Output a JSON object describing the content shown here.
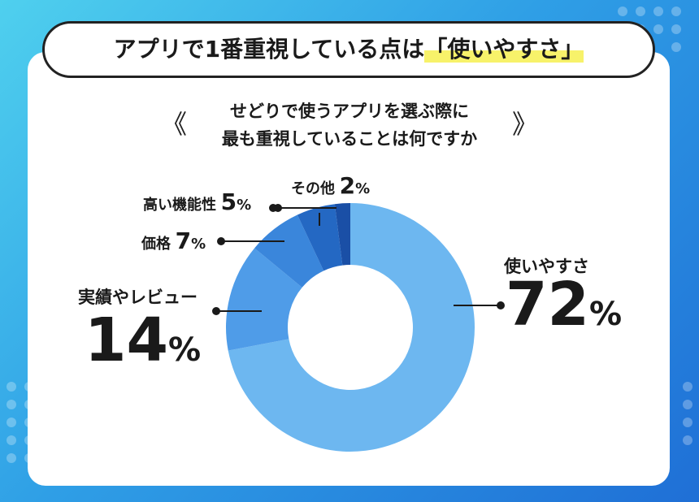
{
  "title": {
    "prefix": "アプリで1番重視している点は",
    "highlight": "「使いやすさ」"
  },
  "subtitle_lines": [
    "せどりで使うアプリを選ぶ際に",
    "最も重視していることは何ですか"
  ],
  "chart_data": {
    "type": "pie",
    "donut": true,
    "slices": [
      {
        "label": "使いやすさ",
        "value": 72,
        "color": "#6db7f0",
        "display": "72",
        "unit": "%"
      },
      {
        "label": "実績やレビュー",
        "value": 14,
        "color": "#4f9ce8",
        "display": "14",
        "unit": "%"
      },
      {
        "label": "価格",
        "value": 7,
        "color": "#3a86db",
        "display": "7",
        "unit": "%"
      },
      {
        "label": "高い機能性",
        "value": 5,
        "color": "#2468c3",
        "display": "5",
        "unit": "%"
      },
      {
        "label": "その他",
        "value": 2,
        "color": "#1a4fa6",
        "display": "2",
        "unit": "%"
      }
    ]
  }
}
